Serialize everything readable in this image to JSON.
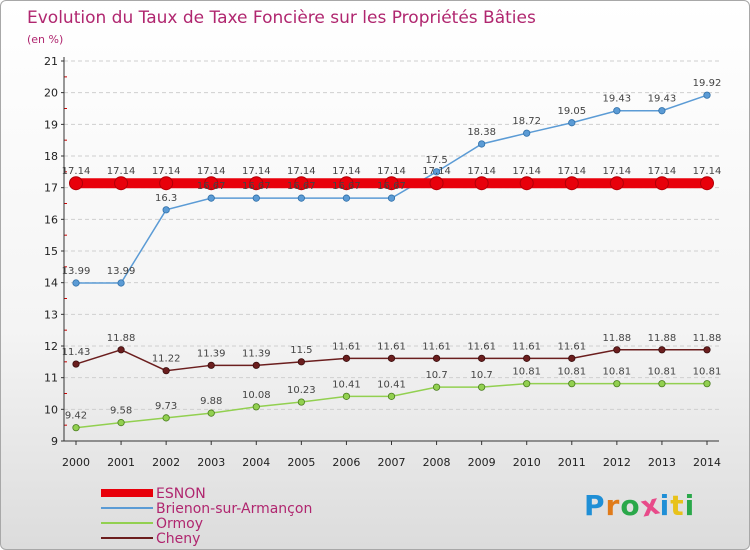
{
  "chart_data": {
    "type": "line",
    "title": "Evolution du Taux de Taxe Foncière sur les Propriétés Bâties",
    "subtitle": "(en %)",
    "x": [
      "2000",
      "2001",
      "2002",
      "2003",
      "2004",
      "2005",
      "2006",
      "2007",
      "2008",
      "2009",
      "2010",
      "2011",
      "2012",
      "2013",
      "2014"
    ],
    "ylim": [
      9,
      21
    ],
    "yticks": [
      9,
      10,
      11,
      12,
      13,
      14,
      15,
      16,
      17,
      18,
      19,
      20,
      21
    ],
    "grid": "horizontal dashed",
    "legend_position": "bottom-left",
    "series": [
      {
        "name": "ESNON",
        "color": "#e8000b",
        "values": [
          17.14,
          17.14,
          17.14,
          17.14,
          17.14,
          17.14,
          17.14,
          17.14,
          17.14,
          17.14,
          17.14,
          17.14,
          17.14,
          17.14,
          17.14
        ],
        "labels": [
          "17.14",
          "17.14",
          "17.14",
          "17.14",
          "17.14",
          "17.14",
          "17.14",
          "17.14",
          "17.14",
          "17.14",
          "17.14",
          "17.14",
          "17.14",
          "17.14",
          "17.14"
        ]
      },
      {
        "name": "Brienon-sur-Armançon",
        "color": "#5b9bd5",
        "values": [
          13.99,
          13.99,
          16.3,
          16.67,
          16.67,
          16.67,
          16.67,
          16.67,
          17.5,
          18.38,
          18.72,
          19.05,
          19.43,
          19.43,
          19.92
        ],
        "labels": [
          "13.99",
          "13.99",
          "16.3",
          "16.67",
          "16.67",
          "16.67",
          "16.67",
          "16.67",
          "17.5",
          "18.38",
          "18.72",
          "19.05",
          "19.43",
          "19.43",
          "19.92"
        ]
      },
      {
        "name": "Ormoy",
        "color": "#92d050",
        "values": [
          9.42,
          9.58,
          9.73,
          9.88,
          10.08,
          10.23,
          10.41,
          10.41,
          10.7,
          10.7,
          10.81,
          10.81,
          10.81,
          10.81,
          10.81
        ],
        "labels": [
          "9.42",
          "9.58",
          "9.73",
          "9.88",
          "10.08",
          "10.23",
          "10.41",
          "10.41",
          "10.7",
          "10.7",
          "10.81",
          "10.81",
          "10.81",
          "10.81",
          "10.81"
        ]
      },
      {
        "name": "Cheny",
        "color": "#6b1e1e",
        "values": [
          11.43,
          11.88,
          11.22,
          11.39,
          11.39,
          11.5,
          11.61,
          11.61,
          11.61,
          11.61,
          11.61,
          11.61,
          11.88,
          11.88,
          11.88
        ],
        "labels": [
          "11.43",
          "11.88",
          "11.22",
          "11.39",
          "11.39",
          "11.5",
          "11.61",
          "11.61",
          "11.61",
          "11.61",
          "11.61",
          "11.61",
          "11.88",
          "11.88",
          "11.88"
        ]
      }
    ]
  },
  "logo": {
    "text": "Proxiti"
  }
}
